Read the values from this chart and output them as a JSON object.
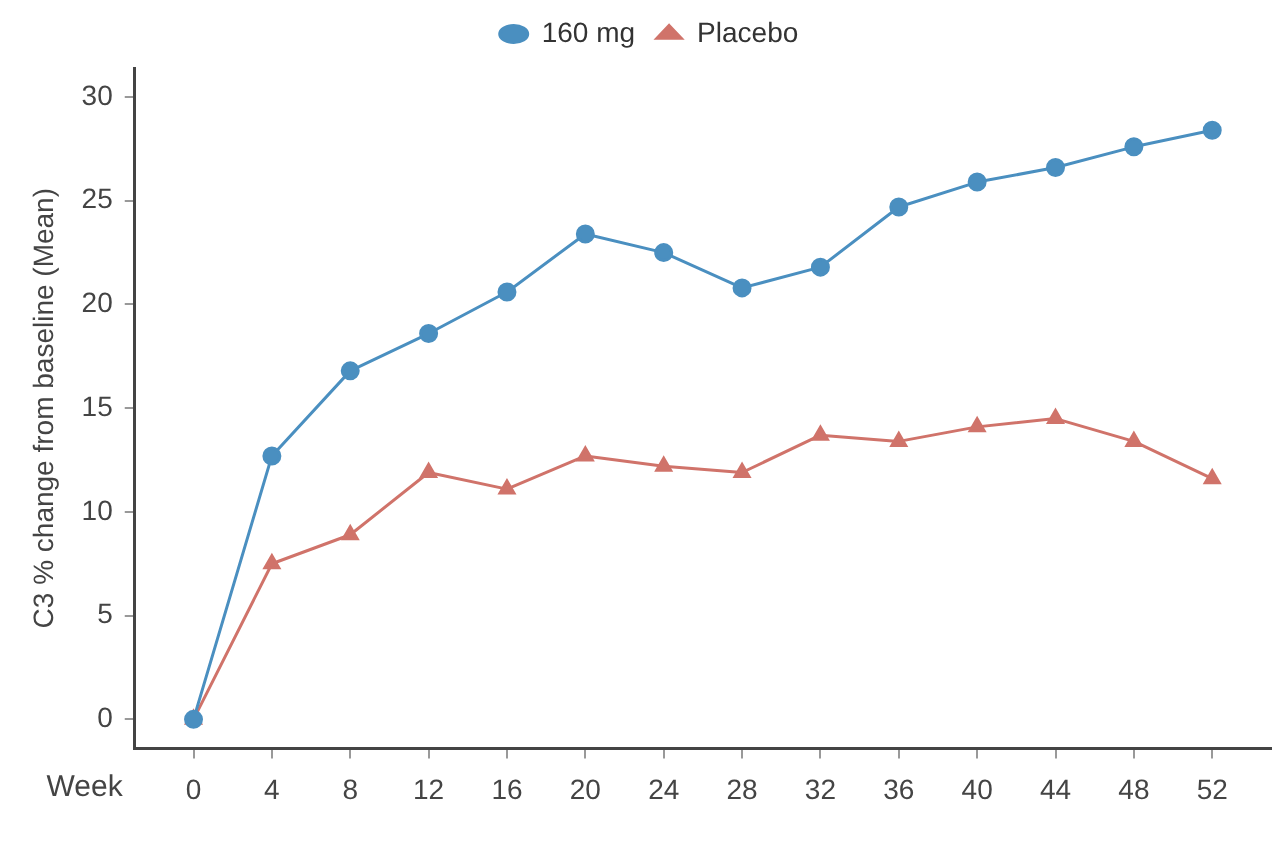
{
  "chart_data": {
    "type": "line",
    "xlabel": "Week",
    "ylabel": "C3 % change from baseline (Mean)",
    "x": [
      0,
      4,
      8,
      12,
      16,
      20,
      24,
      28,
      32,
      36,
      40,
      44,
      48,
      52
    ],
    "series": [
      {
        "name": "160 mg",
        "color": "#4a8fc0",
        "marker": "circle",
        "values": [
          0,
          12.7,
          16.8,
          18.6,
          20.6,
          23.4,
          22.5,
          20.8,
          21.8,
          24.7,
          25.9,
          26.6,
          27.6,
          28.4
        ]
      },
      {
        "name": "Placebo",
        "color": "#d0736a",
        "marker": "triangle",
        "values": [
          0,
          7.5,
          8.9,
          11.9,
          11.1,
          12.7,
          12.2,
          11.9,
          13.7,
          13.4,
          14.1,
          14.5,
          13.4,
          11.6
        ]
      }
    ],
    "xlim": [
      -3,
      55
    ],
    "xticks": [
      0,
      4,
      8,
      12,
      16,
      20,
      24,
      28,
      32,
      36,
      40,
      44,
      48,
      52
    ],
    "ylim": [
      -1.4,
      31.4
    ],
    "yticks": [
      0,
      5,
      10,
      15,
      20,
      25,
      30
    ],
    "grid": false,
    "legend": "top",
    "line_style": "solid"
  }
}
